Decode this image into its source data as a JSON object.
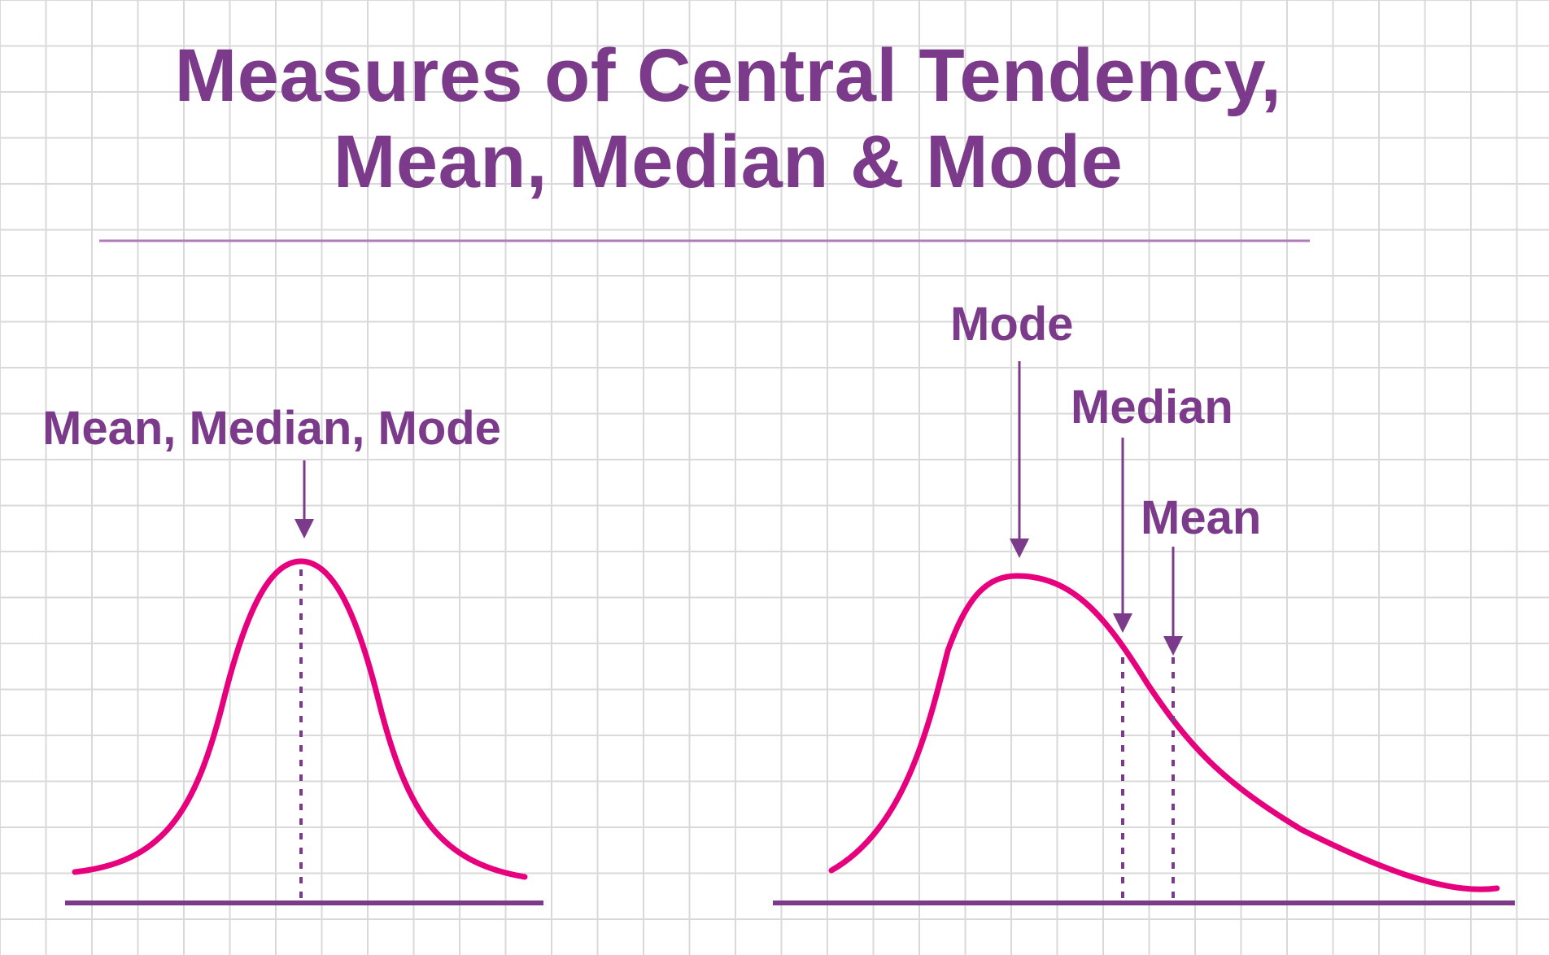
{
  "title": {
    "line1": "Measures of Central Tendency,",
    "line2": "Mean, Median & Mode"
  },
  "symmetric": {
    "label": "Mean, Median, Mode"
  },
  "skewed": {
    "mode_label": "Mode",
    "median_label": "Median",
    "mean_label": "Mean"
  },
  "colors": {
    "title": "#7b3a8a",
    "curve": "#e6007e",
    "axis": "#7b3a8a",
    "grid": "#d9d9d9"
  }
}
